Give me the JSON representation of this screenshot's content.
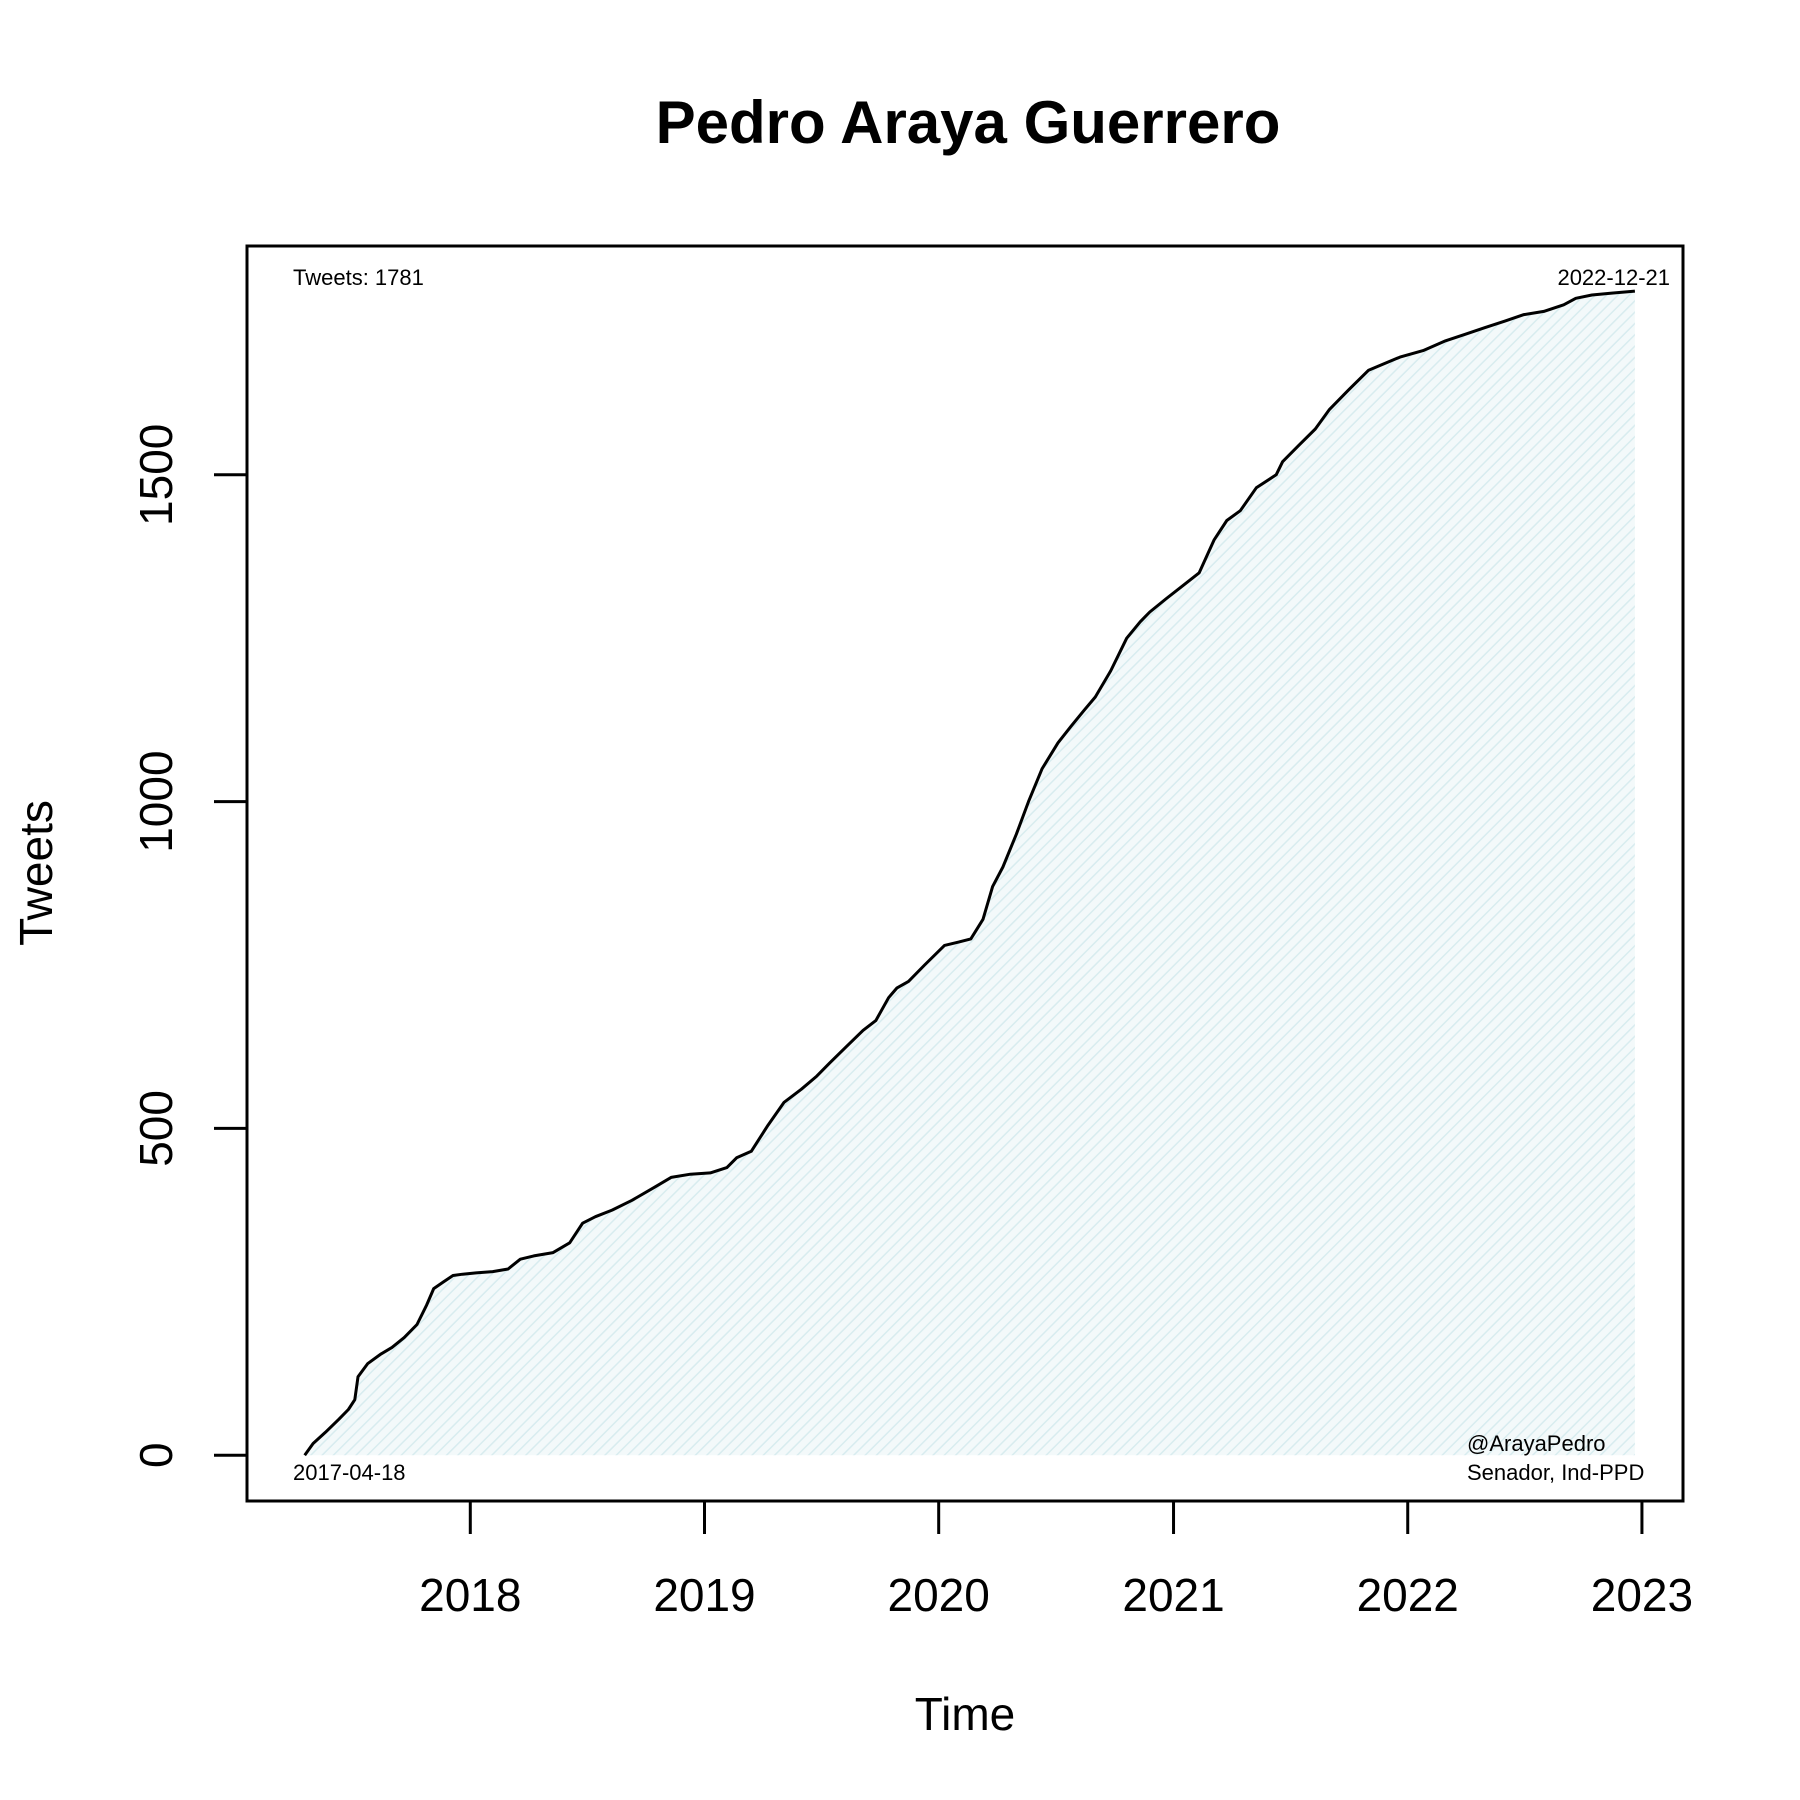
{
  "chart_data": {
    "type": "area",
    "title": "Pedro Araya Guerrero",
    "xlabel": "Time",
    "ylabel": "Tweets",
    "x_ticks": [
      "2018",
      "2019",
      "2020",
      "2021",
      "2022",
      "2023"
    ],
    "y_ticks": [
      "0",
      "500",
      "1000",
      "1500"
    ],
    "xlim": [
      "2017-01-18",
      "2023-03-06"
    ],
    "ylim": [
      -70,
      1850
    ],
    "grid": false,
    "fill_color": "#d8ecef",
    "line_color": "#000000",
    "annotations": {
      "top_left": "Tweets: 1781",
      "top_right": "2022-12-21",
      "bottom_left": "2017-04-18",
      "bottom_right_handle": "@ArayaPedro",
      "bottom_right_role": "Senador, Ind-PPD"
    },
    "series": [
      {
        "x": [
          "2017-04-18",
          "2017-05-01",
          "2017-05-20",
          "2017-06-10",
          "2017-06-25",
          "2017-07-05",
          "2017-07-10",
          "2017-07-25",
          "2017-08-15",
          "2017-09-01",
          "2017-09-20",
          "2017-10-10",
          "2017-10-25",
          "2017-11-05",
          "2017-11-20",
          "2017-12-05",
          "2017-12-20",
          "2018-01-10",
          "2018-02-05",
          "2018-03-01",
          "2018-03-20",
          "2018-04-10",
          "2018-05-10",
          "2018-06-05",
          "2018-06-25",
          "2018-07-15",
          "2018-08-10",
          "2018-09-10",
          "2018-10-15",
          "2018-11-10",
          "2018-12-10",
          "2019-01-10",
          "2019-02-05",
          "2019-02-20",
          "2019-03-15",
          "2019-04-10",
          "2019-05-05",
          "2019-06-01",
          "2019-06-25",
          "2019-07-15",
          "2019-08-10",
          "2019-09-05",
          "2019-09-25",
          "2019-10-15",
          "2019-10-28",
          "2019-11-15",
          "2019-12-10",
          "2020-01-10",
          "2020-02-01",
          "2020-02-20",
          "2020-03-10",
          "2020-03-25",
          "2020-04-10",
          "2020-05-01",
          "2020-05-20",
          "2020-06-10",
          "2020-07-05",
          "2020-07-25",
          "2020-08-15",
          "2020-09-01",
          "2020-09-25",
          "2020-10-20",
          "2020-11-10",
          "2020-11-25",
          "2020-12-20",
          "2021-01-15",
          "2021-02-10",
          "2021-03-05",
          "2021-03-25",
          "2021-04-15",
          "2021-05-10",
          "2021-06-10",
          "2021-06-20",
          "2021-07-15",
          "2021-08-10",
          "2021-09-01",
          "2021-10-01",
          "2021-11-01",
          "2021-11-25",
          "2021-12-20",
          "2022-01-25",
          "2022-03-01",
          "2022-04-01",
          "2022-05-01",
          "2022-06-01",
          "2022-07-01",
          "2022-08-01",
          "2022-09-01",
          "2022-09-20",
          "2022-10-15",
          "2022-11-15",
          "2022-12-10",
          "2022-12-21"
        ],
        "y": [
          0,
          18,
          35,
          55,
          70,
          85,
          120,
          140,
          155,
          165,
          180,
          200,
          230,
          255,
          265,
          275,
          277,
          279,
          281,
          285,
          300,
          305,
          310,
          325,
          355,
          365,
          375,
          390,
          410,
          425,
          430,
          432,
          440,
          455,
          465,
          505,
          540,
          560,
          580,
          600,
          625,
          650,
          665,
          700,
          715,
          725,
          750,
          780,
          785,
          790,
          820,
          870,
          900,
          950,
          1000,
          1050,
          1090,
          1115,
          1140,
          1160,
          1200,
          1250,
          1275,
          1290,
          1310,
          1330,
          1350,
          1400,
          1430,
          1445,
          1480,
          1500,
          1520,
          1545,
          1570,
          1600,
          1630,
          1660,
          1670,
          1680,
          1690,
          1705,
          1715,
          1725,
          1735,
          1745,
          1750,
          1760,
          1770,
          1775,
          1778,
          1780,
          1781
        ]
      }
    ]
  }
}
